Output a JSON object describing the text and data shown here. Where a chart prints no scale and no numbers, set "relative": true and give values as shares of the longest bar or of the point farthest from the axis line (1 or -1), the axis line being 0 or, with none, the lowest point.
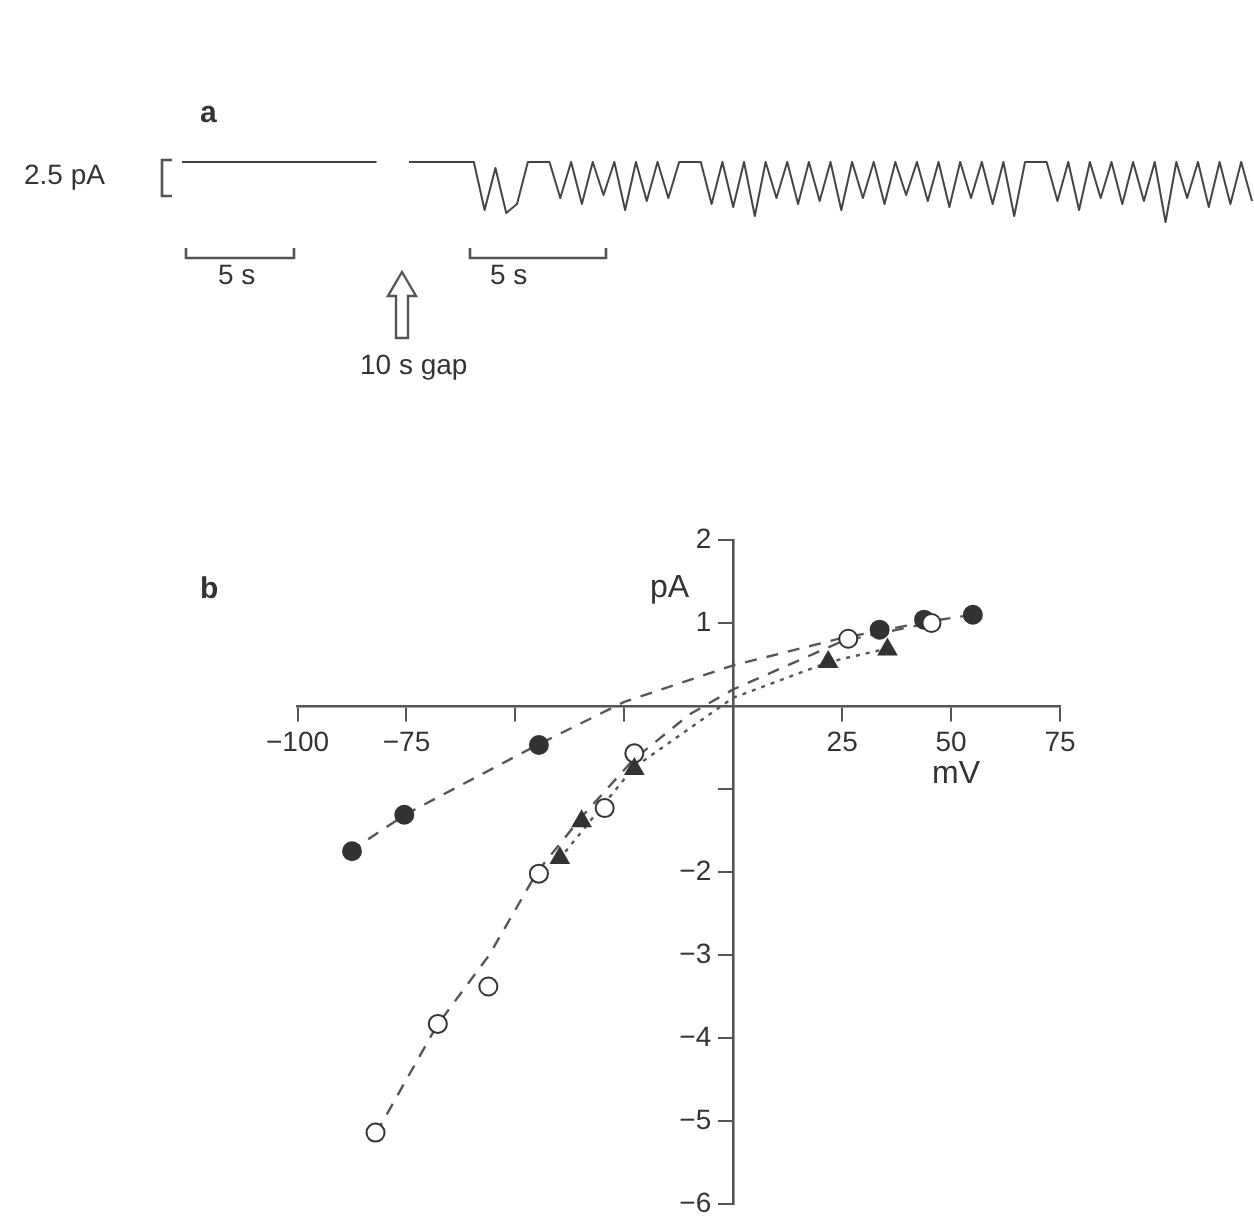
{
  "chart_data": [
    {
      "type": "line",
      "title": "a",
      "relative": true,
      "legend": false,
      "grid": false,
      "marker": "none",
      "annotations": [
        "2.5 pA",
        "5 s",
        "5 s",
        "10 s gap"
      ],
      "categories": [
        null,
        null,
        null,
        null,
        null,
        null,
        null,
        null,
        null,
        null,
        null,
        null,
        null,
        null,
        null,
        null,
        null,
        null,
        null,
        null,
        null,
        null,
        null,
        null,
        null,
        null,
        null,
        null,
        null,
        null,
        null,
        null,
        null,
        null,
        null,
        null,
        null,
        null,
        null,
        null,
        null,
        null,
        null,
        null,
        null,
        null,
        null,
        null,
        null,
        null,
        null,
        null,
        null,
        null,
        null,
        null,
        null,
        null,
        null,
        null,
        null,
        null,
        null,
        null,
        null,
        null,
        null,
        null,
        null,
        null,
        null,
        null,
        null,
        null,
        null,
        null,
        null,
        null,
        null,
        null,
        null,
        null,
        null,
        null,
        null,
        null,
        null,
        null,
        null,
        null,
        null,
        null,
        null,
        null,
        null,
        null,
        null,
        null,
        null,
        null
      ],
      "series": [
        {
          "color": "#444444",
          "values": [
            1,
            1,
            1,
            1,
            1,
            1,
            1,
            1,
            1,
            1,
            1,
            1,
            1,
            1,
            1,
            1,
            1,
            1,
            1,
            null,
            null,
            null,
            null,
            null,
            null,
            null,
            null,
            null,
            null,
            null,
            null,
            null,
            null,
            null,
            null,
            null,
            null,
            null,
            null,
            null,
            null,
            null,
            null,
            null,
            null,
            null,
            null,
            null,
            null,
            null,
            null,
            null,
            null,
            null,
            null,
            null,
            null,
            null,
            null,
            null,
            null,
            null,
            null,
            null,
            null,
            null,
            null,
            null,
            null,
            null,
            null,
            null,
            null,
            null,
            null,
            null,
            null,
            null,
            null,
            null,
            null,
            null,
            null,
            null,
            null,
            null,
            null,
            null,
            null,
            null,
            null,
            null,
            null,
            null,
            null,
            null,
            null,
            null,
            null,
            null
          ]
        },
        {
          "color": "#444444",
          "values": [
            null,
            null,
            null,
            null,
            null,
            null,
            null,
            null,
            null,
            null,
            null,
            null,
            null,
            null,
            null,
            null,
            null,
            null,
            null,
            null,
            null,
            1,
            1,
            1,
            1,
            1,
            1,
            1,
            0.2,
            0.9,
            0.15,
            0.3,
            1,
            1,
            1,
            0.4,
            1,
            0.3,
            1,
            0.45,
            1,
            0.2,
            1,
            0.35,
            1,
            0.4,
            1,
            1,
            1,
            0.3,
            1,
            0.25,
            1,
            0.1,
            1,
            0.4,
            1,
            0.3,
            1,
            0.35,
            1,
            0.2,
            1,
            0.4,
            1,
            0.3,
            1,
            0.45,
            1,
            0.35,
            1,
            0.25,
            1,
            0.4,
            1,
            0.3,
            1,
            0.1,
            1,
            1,
            1,
            0.35,
            1,
            0.2,
            1,
            0.4,
            1,
            0.3,
            1,
            0.35,
            1,
            0.0,
            1,
            0.4,
            1,
            0.25,
            1,
            0.3,
            1,
            0.35
          ]
        }
      ]
    },
    {
      "type": "scatter",
      "title": "b",
      "xlabel": "mV",
      "ylabel": "pA",
      "legend": false,
      "grid": false,
      "xlim": [
        -100,
        75
      ],
      "ylim": [
        -6,
        2
      ],
      "xticks": [
        -100,
        -75,
        {
          "value": -50,
          "label": null
        },
        {
          "value": -25,
          "label": null
        },
        {
          "value": 0,
          "label": null
        },
        25,
        50,
        75
      ],
      "yticks": [
        -6,
        -5,
        -4,
        -3,
        -2,
        {
          "value": -1,
          "label": null
        },
        {
          "value": 0,
          "label": null
        },
        1,
        2
      ],
      "series": [
        {
          "type": "line",
          "marker": "none",
          "line_style": "dashed",
          "color": "#555555",
          "x": [
            -88,
            -75,
            -45,
            -25,
            0,
            25,
            45,
            55
          ],
          "values": [
            -1.75,
            -1.3,
            -0.47,
            0.05,
            0.49,
            0.82,
            1.02,
            1.1
          ]
        },
        {
          "type": "line",
          "marker": "none",
          "line_style": "dashed",
          "color": "#555555",
          "x": [
            -82,
            -68,
            -56,
            -45,
            -35,
            -23,
            -10,
            0,
            25,
            45
          ],
          "values": [
            -5.15,
            -3.85,
            -3.0,
            -2.0,
            -1.35,
            -0.65,
            -0.1,
            0.2,
            0.78,
            1.0
          ]
        },
        {
          "type": "line",
          "marker": "none",
          "line_style": "dotted",
          "color": "#555555",
          "x": [
            -40,
            -23,
            0,
            22,
            36
          ],
          "values": [
            -1.85,
            -0.75,
            0.1,
            0.53,
            0.7
          ]
        },
        {
          "marker": "circle",
          "color": "#333333",
          "x": [
            -87.5,
            -75.5,
            -44.6,
            33.6,
            43.8,
            55
          ],
          "values": [
            -1.75,
            -1.31,
            -0.47,
            0.92,
            1.04,
            1.1
          ]
        },
        {
          "marker": "circle",
          "color": "#ffffff",
          "x": [
            -82.1,
            -67.8,
            -56.2,
            -44.6,
            -29.5,
            -22.7,
            26.4,
            45.5
          ],
          "values": [
            -5.14,
            -3.83,
            -3.38,
            -2.02,
            -1.23,
            -0.57,
            0.81,
            1.0
          ]
        },
        {
          "marker": "triangle",
          "color": "#333333",
          "x": [
            -39.8,
            -34.8,
            -22.7,
            21.8,
            35.4
          ],
          "values": [
            -1.83,
            -1.39,
            -0.76,
            0.53,
            0.68
          ]
        }
      ]
    }
  ]
}
